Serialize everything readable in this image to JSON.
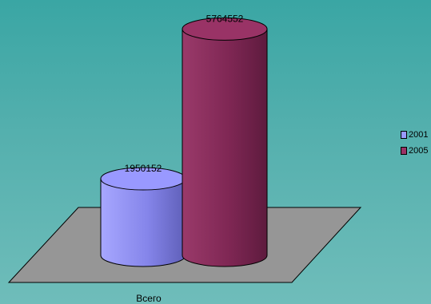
{
  "chart_data": {
    "type": "bar",
    "style": "3d-cylinder",
    "categories": [
      "Всего"
    ],
    "series": [
      {
        "name": "2001",
        "values": [
          1950152
        ],
        "color": "#9999ff"
      },
      {
        "name": "2005",
        "values": [
          5764552
        ],
        "color": "#993366"
      }
    ],
    "data_labels": [
      "1950152",
      "5764552"
    ],
    "xlabel": "",
    "ylabel": "",
    "ylim": [
      0,
      6000000
    ],
    "legend_position": "right",
    "grid": false,
    "floor_color": "#969696",
    "background_color": "#4aaca9"
  }
}
